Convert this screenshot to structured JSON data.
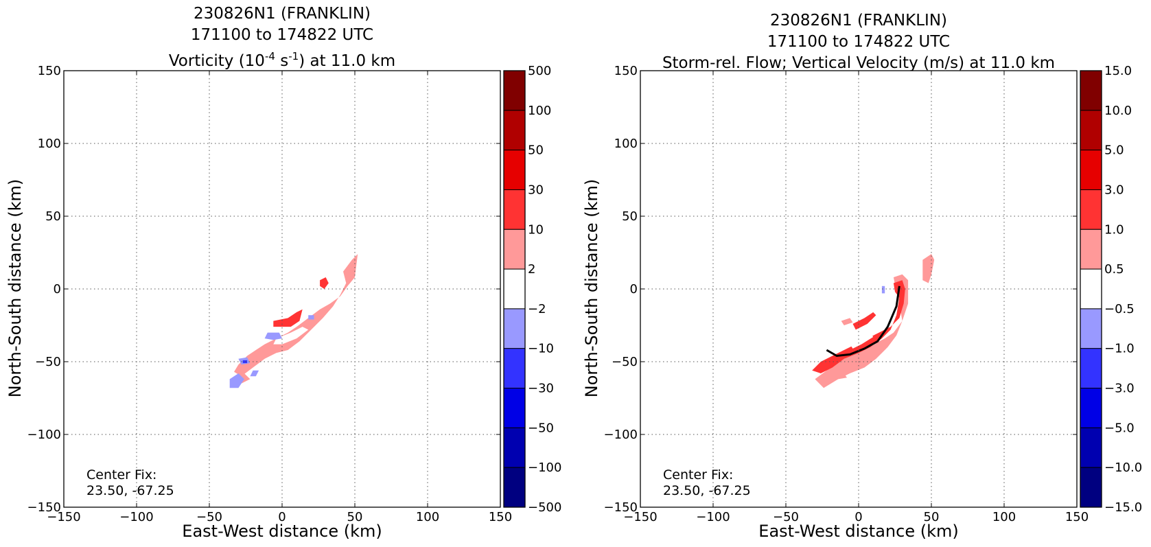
{
  "chart_data": [
    {
      "type": "heatmap",
      "title_lines": [
        "230826N1 (FRANKLIN)",
        "171100 to 174822 UTC"
      ],
      "title_field_parts": [
        "Vorticity (10",
        "-4",
        " s",
        "-1",
        ") at 11.0 km"
      ],
      "xlabel": "East-West distance (km)",
      "ylabel": "North-South distance (km)",
      "xlim": [
        -150,
        150
      ],
      "ylim": [
        -150,
        150
      ],
      "xticks": [
        "−150",
        "−100",
        "−50",
        "0",
        "50",
        "100",
        "150"
      ],
      "yticks": [
        "−150",
        "−100",
        "−50",
        "0",
        "50",
        "100",
        "150"
      ],
      "grid": true,
      "colorbar_labels": [
        "−500",
        "−100",
        "−50",
        "−30",
        "−10",
        "−2",
        "2",
        "10",
        "30",
        "50",
        "100",
        "500"
      ],
      "colorbar_colors": [
        "#000080",
        "#0000b0",
        "#0000e6",
        "#3333ff",
        "#9999ff",
        "#ffffff",
        "#ff9999",
        "#ff3333",
        "#e60000",
        "#b00000",
        "#800000"
      ],
      "center_fix_label": "Center Fix:",
      "center_fix_value": "23.50, -67.25",
      "regions": [
        {
          "level": "light_red",
          "points": [
            [
              42,
              12
            ],
            [
              48,
              20
            ],
            [
              52,
              24
            ],
            [
              50,
              8
            ],
            [
              45,
              2
            ],
            [
              40,
              -5
            ],
            [
              33,
              -10
            ],
            [
              26,
              -14
            ],
            [
              18,
              -20
            ],
            [
              10,
              -26
            ],
            [
              4,
              -30
            ],
            [
              -4,
              -34
            ],
            [
              -12,
              -38
            ],
            [
              -18,
              -42
            ],
            [
              -24,
              -46
            ],
            [
              -30,
              -52
            ],
            [
              -33,
              -57
            ],
            [
              -28,
              -60
            ],
            [
              -20,
              -54
            ],
            [
              -12,
              -48
            ],
            [
              -4,
              -44
            ],
            [
              4,
              -42
            ],
            [
              12,
              -36
            ],
            [
              20,
              -28
            ],
            [
              28,
              -20
            ],
            [
              35,
              -12
            ],
            [
              40,
              -4
            ],
            [
              44,
              4
            ]
          ]
        },
        {
          "level": "light_red",
          "points": [
            [
              -32,
              -60
            ],
            [
              -26,
              -58
            ],
            [
              -22,
              -62
            ],
            [
              -28,
              -65
            ]
          ]
        },
        {
          "level": "white",
          "points": [
            [
              -4,
              -34
            ],
            [
              6,
              -30
            ],
            [
              14,
              -26
            ],
            [
              18,
              -28
            ],
            [
              10,
              -34
            ],
            [
              0,
              -38
            ],
            [
              -6,
              -38
            ]
          ]
        },
        {
          "level": "red",
          "points": [
            [
              -6,
              -22
            ],
            [
              4,
              -20
            ],
            [
              10,
              -16
            ],
            [
              14,
              -14
            ],
            [
              12,
              -22
            ],
            [
              6,
              -26
            ],
            [
              -2,
              -26
            ],
            [
              -6,
              -26
            ]
          ]
        },
        {
          "level": "red",
          "points": [
            [
              26,
              6
            ],
            [
              30,
              8
            ],
            [
              32,
              4
            ],
            [
              29,
              0
            ],
            [
              26,
              2
            ]
          ]
        },
        {
          "level": "light_blue",
          "points": [
            [
              -10,
              -30
            ],
            [
              -2,
              -30
            ],
            [
              0,
              -34
            ],
            [
              -6,
              -35
            ],
            [
              -12,
              -34
            ]
          ]
        },
        {
          "level": "light_blue",
          "points": [
            [
              18,
              -18
            ],
            [
              22,
              -18
            ],
            [
              22,
              -21
            ],
            [
              18,
              -21
            ]
          ]
        },
        {
          "level": "light_blue",
          "points": [
            [
              -36,
              -62
            ],
            [
              -30,
              -58
            ],
            [
              -26,
              -62
            ],
            [
              -30,
              -68
            ],
            [
              -36,
              -68
            ]
          ]
        },
        {
          "level": "light_blue",
          "points": [
            [
              -30,
              -48
            ],
            [
              -24,
              -47
            ],
            [
              -22,
              -51
            ],
            [
              -28,
              -52
            ]
          ]
        },
        {
          "level": "light_blue",
          "points": [
            [
              -20,
              -56
            ],
            [
              -16,
              -56
            ],
            [
              -18,
              -60
            ],
            [
              -22,
              -60
            ]
          ]
        },
        {
          "level": "blue",
          "points": [
            [
              -27,
              -49
            ],
            [
              -24,
              -49
            ],
            [
              -24,
              -51
            ],
            [
              -27,
              -51
            ]
          ]
        }
      ]
    },
    {
      "type": "heatmap",
      "title_lines": [
        "230826N1 (FRANKLIN)",
        "171100 to 174822 UTC",
        "Storm-rel. Flow; Vertical Velocity (m/s) at 11.0 km"
      ],
      "xlabel": "East-West distance (km)",
      "ylabel": "North-South distance (km)",
      "xlim": [
        -150,
        150
      ],
      "ylim": [
        -150,
        150
      ],
      "xticks": [
        "−150",
        "−100",
        "−50",
        "0",
        "50",
        "100",
        "150"
      ],
      "yticks": [
        "−150",
        "−100",
        "−50",
        "0",
        "50",
        "100",
        "150"
      ],
      "grid": true,
      "colorbar_labels": [
        "−15.0",
        "−10.0",
        "−5.0",
        "−3.0",
        "−1.0",
        "−0.5",
        "0.5",
        "1.0",
        "3.0",
        "5.0",
        "10.0",
        "15.0"
      ],
      "colorbar_colors": [
        "#000080",
        "#0000b0",
        "#0000e6",
        "#3333ff",
        "#9999ff",
        "#ffffff",
        "#ff9999",
        "#ff3333",
        "#e60000",
        "#b00000",
        "#800000"
      ],
      "center_fix_label": "Center Fix:",
      "center_fix_value": "23.50, -67.25",
      "regions": [
        {
          "level": "light_red",
          "points": [
            [
              24,
              8
            ],
            [
              30,
              10
            ],
            [
              34,
              6
            ],
            [
              34,
              -10
            ],
            [
              30,
              -22
            ],
            [
              24,
              -30
            ],
            [
              18,
              -34
            ],
            [
              10,
              -38
            ],
            [
              2,
              -42
            ],
            [
              -6,
              -46
            ],
            [
              -14,
              -50
            ],
            [
              -22,
              -56
            ],
            [
              -30,
              -62
            ],
            [
              -24,
              -68
            ],
            [
              -14,
              -62
            ],
            [
              -6,
              -58
            ],
            [
              4,
              -54
            ],
            [
              12,
              -48
            ],
            [
              20,
              -40
            ],
            [
              26,
              -32
            ],
            [
              30,
              -22
            ],
            [
              28,
              -10
            ],
            [
              26,
              -2
            ]
          ]
        },
        {
          "level": "light_red",
          "points": [
            [
              -16,
              -58
            ],
            [
              -10,
              -58
            ],
            [
              -8,
              -61
            ],
            [
              -14,
              -62
            ]
          ]
        },
        {
          "level": "red",
          "points": [
            [
              24,
              4
            ],
            [
              30,
              6
            ],
            [
              32,
              0
            ],
            [
              31,
              -10
            ],
            [
              28,
              -20
            ],
            [
              22,
              -26
            ],
            [
              14,
              -30
            ],
            [
              6,
              -34
            ],
            [
              -2,
              -38
            ],
            [
              -10,
              -42
            ],
            [
              -18,
              -46
            ],
            [
              -26,
              -50
            ],
            [
              -32,
              -56
            ],
            [
              -26,
              -58
            ],
            [
              -18,
              -54
            ],
            [
              -10,
              -48
            ],
            [
              0,
              -44
            ],
            [
              8,
              -40
            ],
            [
              16,
              -34
            ],
            [
              22,
              -28
            ],
            [
              26,
              -18
            ],
            [
              28,
              -6
            ],
            [
              25,
              -2
            ]
          ]
        },
        {
          "level": "red",
          "points": [
            [
              -4,
              -24
            ],
            [
              4,
              -20
            ],
            [
              10,
              -16
            ],
            [
              12,
              -18
            ],
            [
              6,
              -24
            ],
            [
              -2,
              -28
            ]
          ]
        },
        {
          "level": "white",
          "points": [
            [
              -6,
              -38
            ],
            [
              2,
              -34
            ],
            [
              8,
              -30
            ],
            [
              10,
              -33
            ],
            [
              2,
              -38
            ],
            [
              -4,
              -41
            ]
          ]
        },
        {
          "level": "light_red",
          "points": [
            [
              44,
              20
            ],
            [
              50,
              24
            ],
            [
              52,
              20
            ],
            [
              50,
              10
            ],
            [
              48,
              4
            ],
            [
              44,
              6
            ],
            [
              44,
              14
            ]
          ]
        },
        {
          "level": "light_red",
          "points": [
            [
              -12,
              -22
            ],
            [
              -6,
              -20
            ],
            [
              -4,
              -23
            ],
            [
              -10,
              -25
            ]
          ]
        },
        {
          "level": "light_blue",
          "points": [
            [
              16,
              2
            ],
            [
              18,
              2
            ],
            [
              18,
              -3
            ],
            [
              16,
              -3
            ]
          ]
        }
      ],
      "streamline": [
        [
          -22,
          -42
        ],
        [
          -15,
          -46
        ],
        [
          -6,
          -45
        ],
        [
          4,
          -41
        ],
        [
          13,
          -36
        ],
        [
          20,
          -26
        ],
        [
          26,
          -12
        ],
        [
          28,
          2
        ]
      ]
    }
  ]
}
